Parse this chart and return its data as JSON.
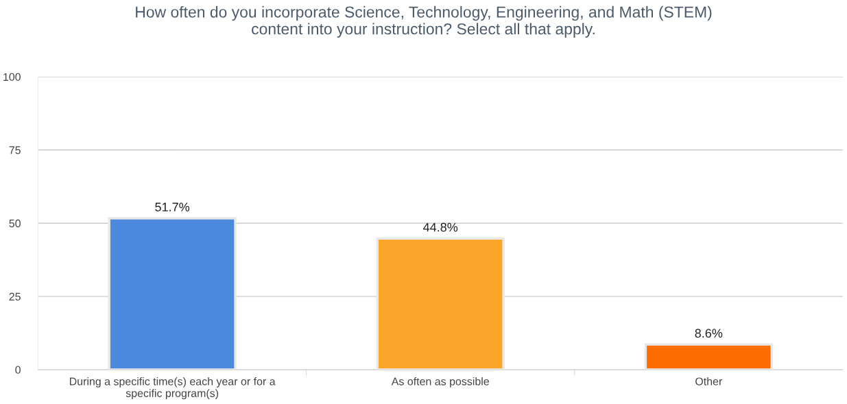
{
  "chart_data": {
    "type": "bar",
    "title": "How often do you incorporate Science, Technology, Engineering, and Math (STEM) content into your instruction? Select all that apply.",
    "categories": [
      "During a specific time(s) each year or for a specific program(s)",
      "As often as possible",
      "Other"
    ],
    "values": [
      51.7,
      44.8,
      8.6
    ],
    "colors": [
      "#4a89dc",
      "#f9a62a",
      "#fe6d00"
    ],
    "value_labels": [
      "51.7%",
      "44.8%",
      "8.6%"
    ],
    "ylim": [
      0,
      100
    ],
    "yticks": [
      0,
      25,
      50,
      75,
      100
    ],
    "grid": "y",
    "legend": false
  }
}
